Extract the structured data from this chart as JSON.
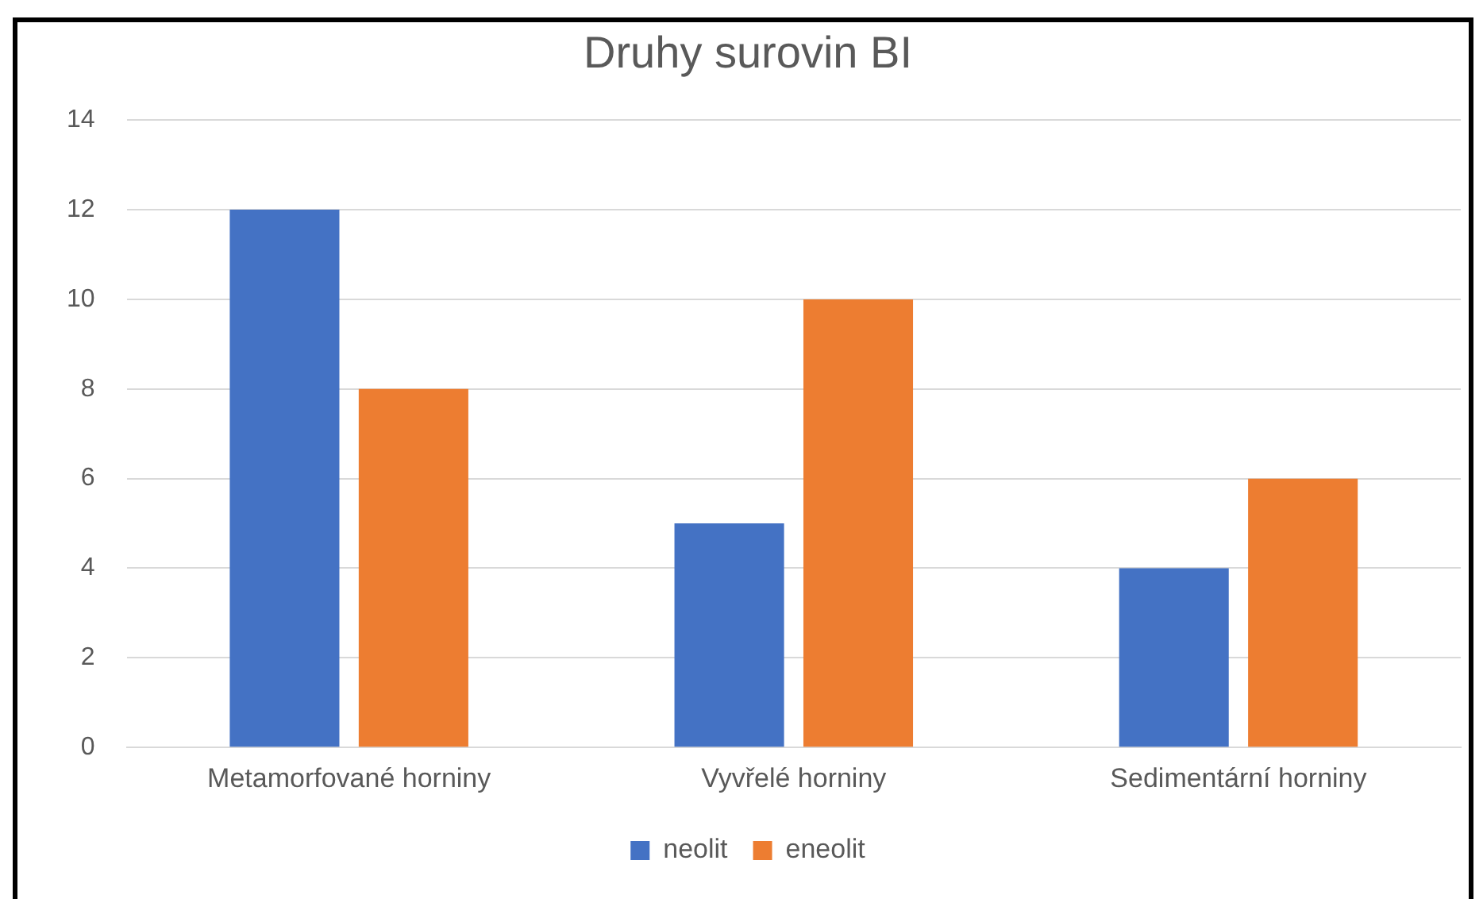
{
  "chart_data": {
    "type": "bar",
    "title": "Druhy surovin BI",
    "categories": [
      "Metamorfované horniny",
      "Vyvřelé horniny",
      "Sedimentární horniny"
    ],
    "series": [
      {
        "name": "neolit",
        "color": "#4472c4",
        "values": [
          12,
          5,
          4
        ]
      },
      {
        "name": "eneolit",
        "color": "#ed7d31",
        "values": [
          8,
          10,
          6
        ]
      }
    ],
    "ylim": [
      0,
      14
    ],
    "yticks": [
      0,
      2,
      4,
      6,
      8,
      10,
      12,
      14
    ],
    "grid": "y",
    "legend": "bottom"
  }
}
